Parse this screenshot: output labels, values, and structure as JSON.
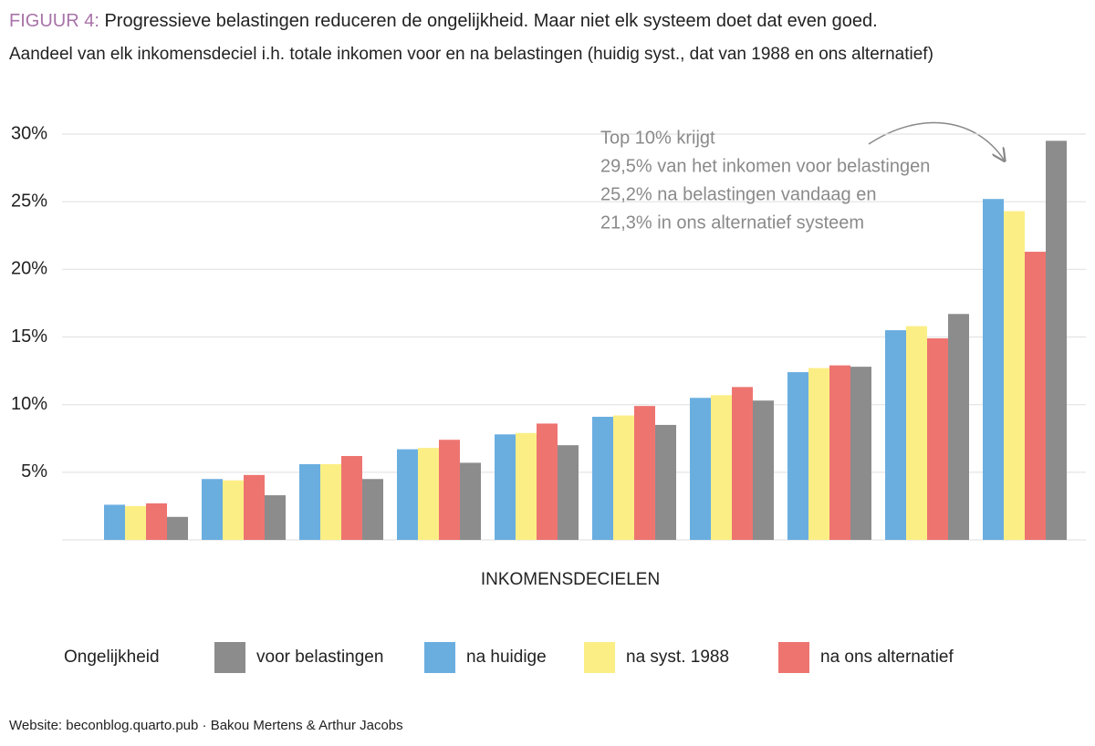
{
  "chart_data": {
    "type": "bar",
    "figure_label": "FIGUUR 4:",
    "title": "Progressieve belastingen reduceren de ongelijkheid. Maar niet elk systeem doet dat even goed.",
    "subtitle": "Aandeel van elk inkomensdeciel i.h. totale inkomen voor en na belastingen (huidig syst., dat van 1988 en ons alternatief)",
    "x_label": "INKOMENSDECIELEN",
    "legend_title": "Ongelijkheid",
    "annotation": [
      "Top 10% krijgt",
      "29,5% van het inkomen voor belastingen",
      "25,2% na belastingen vandaag en",
      "21,3% in ons alternatief systeem"
    ],
    "source": "Website: beconblog.quarto.pub · Bakou Mertens & Arthur Jacobs",
    "categories": [
      null,
      null,
      null,
      null,
      null,
      null,
      null,
      null,
      null,
      null
    ],
    "series": [
      {
        "name": "voor belastingen",
        "color": "#8c8c8c",
        "values": [
          1.7,
          3.3,
          4.5,
          5.7,
          7.0,
          8.5,
          10.3,
          12.8,
          16.7,
          29.5
        ]
      },
      {
        "name": "na huidige",
        "color": "#6aaee0",
        "values": [
          2.6,
          4.5,
          5.6,
          6.7,
          7.8,
          9.1,
          10.5,
          12.4,
          15.5,
          25.2
        ]
      },
      {
        "name": "na syst. 1988",
        "color": "#fbee85",
        "values": [
          2.5,
          4.4,
          5.6,
          6.8,
          7.9,
          9.2,
          10.7,
          12.7,
          15.8,
          24.3
        ]
      },
      {
        "name": "na ons alternatief",
        "color": "#ee7470",
        "values": [
          2.7,
          4.8,
          6.2,
          7.4,
          8.6,
          9.9,
          11.3,
          12.9,
          14.9,
          21.3
        ]
      }
    ],
    "ylim": [
      0,
      30
    ],
    "yticks": [
      {
        "value": 5,
        "label": "5%"
      },
      {
        "value": 10,
        "label": "10%"
      },
      {
        "value": 15,
        "label": "15%"
      },
      {
        "value": 20,
        "label": "20%"
      },
      {
        "value": 25,
        "label": "25%"
      },
      {
        "value": 30,
        "label": "30%"
      }
    ],
    "grid": true
  }
}
